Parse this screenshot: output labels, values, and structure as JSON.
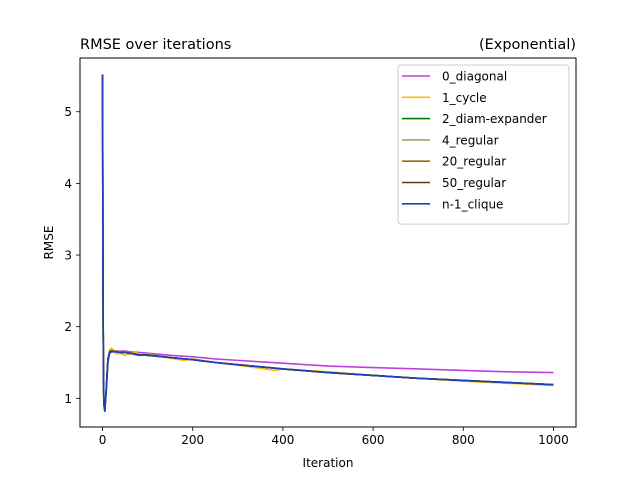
{
  "chart_data": {
    "type": "line",
    "title": "RMSE over iterations",
    "title_right": "(Exponential)",
    "xlabel": "Iteration",
    "ylabel": "RMSE",
    "xlim": [
      -50,
      1050
    ],
    "ylim": [
      0.6,
      5.75
    ],
    "xticks": [
      0,
      200,
      400,
      600,
      800,
      1000
    ],
    "yticks": [
      1,
      2,
      3,
      4,
      5
    ],
    "grid": false,
    "legend_position": "upper right",
    "series": [
      {
        "name": "0_diagonal",
        "color": "#bf3fdf",
        "x": [
          0,
          1,
          2,
          3,
          5,
          8,
          12,
          16,
          20,
          30,
          40,
          50,
          60,
          80,
          100,
          150,
          200,
          250,
          300,
          400,
          500,
          600,
          700,
          800,
          900,
          1000
        ],
        "y": [
          5.52,
          2.6,
          1.3,
          0.92,
          0.84,
          1.1,
          1.5,
          1.63,
          1.65,
          1.66,
          1.66,
          1.66,
          1.65,
          1.64,
          1.63,
          1.6,
          1.58,
          1.55,
          1.53,
          1.49,
          1.45,
          1.43,
          1.41,
          1.39,
          1.37,
          1.36
        ]
      },
      {
        "name": "1_cycle",
        "color": "#ffbf00",
        "x": [
          0,
          1,
          2,
          3,
          5,
          8,
          12,
          16,
          20,
          25,
          30,
          40,
          50,
          60,
          70,
          75,
          80,
          90,
          100,
          150,
          180,
          200,
          250,
          300,
          350,
          380,
          400,
          500,
          600,
          700,
          800,
          900,
          1000
        ],
        "y": [
          5.52,
          2.6,
          1.3,
          0.92,
          0.84,
          1.1,
          1.55,
          1.68,
          1.7,
          1.66,
          1.62,
          1.63,
          1.6,
          1.62,
          1.64,
          1.66,
          1.6,
          1.6,
          1.62,
          1.56,
          1.53,
          1.55,
          1.5,
          1.46,
          1.42,
          1.39,
          1.41,
          1.37,
          1.32,
          1.28,
          1.24,
          1.21,
          1.18
        ]
      },
      {
        "name": "2_diam-expander",
        "color": "#008000",
        "x": [
          0,
          1,
          2,
          3,
          5,
          8,
          12,
          16,
          20,
          30,
          40,
          50,
          60,
          80,
          100,
          150,
          200,
          250,
          300,
          400,
          500,
          600,
          700,
          800,
          900,
          1000
        ],
        "y": [
          5.52,
          2.6,
          1.3,
          0.92,
          0.84,
          1.1,
          1.55,
          1.66,
          1.67,
          1.66,
          1.64,
          1.64,
          1.63,
          1.6,
          1.61,
          1.57,
          1.54,
          1.5,
          1.47,
          1.41,
          1.36,
          1.32,
          1.28,
          1.25,
          1.22,
          1.19
        ]
      },
      {
        "name": "4_regular",
        "color": "#8fae4f",
        "x": [
          0,
          1,
          2,
          3,
          5,
          8,
          12,
          16,
          20,
          30,
          40,
          50,
          60,
          80,
          100,
          150,
          200,
          250,
          300,
          400,
          500,
          600,
          700,
          800,
          900,
          1000
        ],
        "y": [
          5.52,
          2.6,
          1.3,
          0.92,
          0.84,
          1.1,
          1.55,
          1.66,
          1.67,
          1.66,
          1.65,
          1.64,
          1.63,
          1.61,
          1.6,
          1.57,
          1.54,
          1.5,
          1.47,
          1.41,
          1.36,
          1.32,
          1.28,
          1.25,
          1.22,
          1.19
        ]
      },
      {
        "name": "20_regular",
        "color": "#a06c00",
        "x": [
          0,
          1,
          2,
          3,
          5,
          8,
          12,
          16,
          20,
          30,
          40,
          50,
          60,
          80,
          100,
          150,
          200,
          250,
          300,
          400,
          500,
          600,
          700,
          800,
          900,
          1000
        ],
        "y": [
          5.52,
          2.6,
          1.3,
          0.92,
          0.83,
          1.1,
          1.55,
          1.65,
          1.66,
          1.65,
          1.64,
          1.64,
          1.63,
          1.61,
          1.6,
          1.57,
          1.54,
          1.5,
          1.47,
          1.41,
          1.36,
          1.32,
          1.28,
          1.25,
          1.22,
          1.19
        ]
      },
      {
        "name": "50_regular",
        "color": "#5c3d1e",
        "x": [
          0,
          1,
          2,
          3,
          5,
          8,
          12,
          16,
          20,
          30,
          40,
          50,
          60,
          80,
          100,
          150,
          200,
          250,
          300,
          400,
          500,
          600,
          700,
          800,
          900,
          1000
        ],
        "y": [
          5.52,
          2.6,
          1.3,
          0.92,
          0.82,
          1.1,
          1.55,
          1.65,
          1.66,
          1.65,
          1.64,
          1.64,
          1.63,
          1.61,
          1.6,
          1.57,
          1.54,
          1.5,
          1.47,
          1.41,
          1.36,
          1.32,
          1.28,
          1.25,
          1.22,
          1.19
        ]
      },
      {
        "name": "n-1_clique",
        "color": "#1c3fbf",
        "x": [
          0,
          1,
          2,
          3,
          5,
          8,
          12,
          16,
          20,
          30,
          40,
          50,
          60,
          80,
          100,
          150,
          200,
          250,
          300,
          400,
          500,
          600,
          700,
          800,
          900,
          1000
        ],
        "y": [
          5.52,
          2.6,
          1.3,
          0.92,
          0.82,
          1.1,
          1.55,
          1.64,
          1.65,
          1.65,
          1.64,
          1.64,
          1.63,
          1.61,
          1.6,
          1.57,
          1.54,
          1.5,
          1.47,
          1.41,
          1.36,
          1.32,
          1.28,
          1.25,
          1.22,
          1.19
        ]
      }
    ]
  }
}
